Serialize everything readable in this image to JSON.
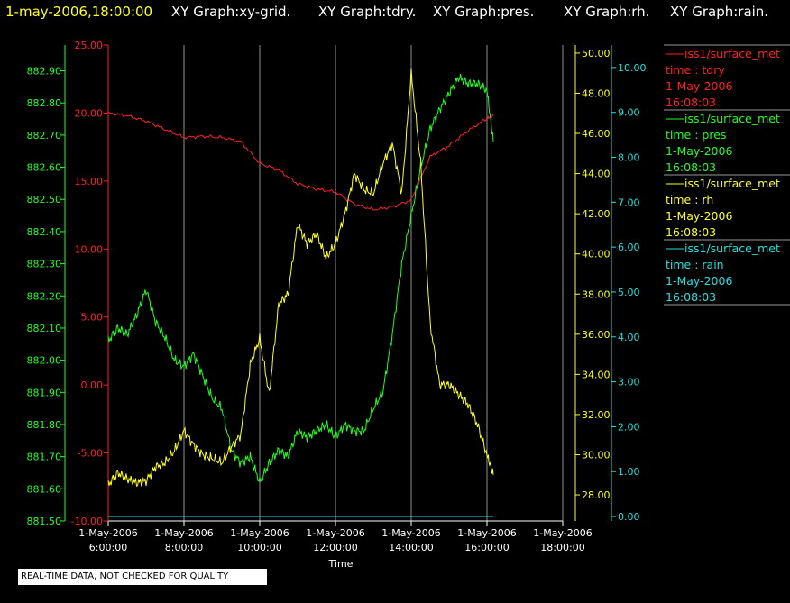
{
  "header": {
    "datetime": "1-may-2006,18:00:00",
    "graphs": [
      "XY Graph:xy-grid.",
      "XY Graph:tdry.",
      "XY Graph:pres.",
      "XY Graph:rh.",
      "XY Graph:rain."
    ]
  },
  "notice": "REAL-TIME DATA, NOT CHECKED FOR QUALITY",
  "colors": {
    "background": "#000000",
    "tdry": "#ff2020",
    "pres": "#20ff20",
    "rh": "#ffff20",
    "rain": "#20e0e0",
    "grid": "#ffffff"
  },
  "chart_data": {
    "type": "line",
    "xlabel": "Time",
    "x_ticks": [
      {
        "date": "1-May-2006",
        "time": "6:00:00"
      },
      {
        "date": "1-May-2006",
        "time": "8:00:00"
      },
      {
        "date": "1-May-2006",
        "time": "10:00:00"
      },
      {
        "date": "1-May-2006",
        "time": "12:00:00"
      },
      {
        "date": "1-May-2006",
        "time": "14:00:00"
      },
      {
        "date": "1-May-2006",
        "time": "16:00:00"
      },
      {
        "date": "1-May-2006",
        "time": "18:00:00"
      }
    ],
    "xlim": [
      "06:00",
      "18:00"
    ],
    "grid": "vertical",
    "axes": {
      "pres": {
        "ticks": [
          "881.50",
          "881.60",
          "881.70",
          "881.80",
          "881.90",
          "882.00",
          "882.10",
          "882.20",
          "882.30",
          "882.40",
          "882.50",
          "882.60",
          "882.70",
          "882.80",
          "882.90"
        ],
        "ylim": [
          881.5,
          882.98
        ]
      },
      "tdry": {
        "ticks": [
          "-10.00",
          "-5.00",
          "0.00",
          "5.00",
          "10.00",
          "15.00",
          "20.00",
          "25.00"
        ],
        "ylim": [
          -10,
          25
        ]
      },
      "rh": {
        "ticks": [
          "28.00",
          "30.00",
          "32.00",
          "34.00",
          "36.00",
          "38.00",
          "40.00",
          "42.00",
          "44.00",
          "46.00",
          "48.00",
          "50.00"
        ],
        "ylim": [
          26.7,
          50.4
        ]
      },
      "rain": {
        "ticks": [
          "0.00",
          "1.00",
          "2.00",
          "3.00",
          "4.00",
          "5.00",
          "6.00",
          "7.00",
          "8.00",
          "9.00",
          "10.00"
        ],
        "ylim": [
          -0.1,
          10.5
        ]
      }
    },
    "series": [
      {
        "name": "tdry",
        "axis": "tdry",
        "x": [
          "06:00",
          "06:30",
          "07:00",
          "07:30",
          "08:00",
          "08:30",
          "09:00",
          "09:30",
          "10:00",
          "10:30",
          "11:00",
          "11:30",
          "12:00",
          "12:30",
          "13:00",
          "13:30",
          "14:00",
          "14:30",
          "15:00",
          "15:30",
          "16:00",
          "16:10"
        ],
        "y": [
          20.0,
          19.8,
          19.4,
          18.8,
          18.2,
          18.3,
          18.2,
          17.9,
          16.3,
          15.8,
          14.8,
          14.4,
          14.2,
          13.3,
          12.9,
          13.1,
          13.6,
          16.8,
          17.6,
          18.7,
          19.6,
          19.8
        ]
      },
      {
        "name": "pres",
        "axis": "pres",
        "x": [
          "06:00",
          "06:15",
          "06:30",
          "06:45",
          "07:00",
          "07:15",
          "07:30",
          "07:45",
          "08:00",
          "08:15",
          "08:30",
          "08:45",
          "09:00",
          "09:15",
          "09:30",
          "09:45",
          "10:00",
          "10:15",
          "10:30",
          "10:45",
          "11:00",
          "11:15",
          "11:30",
          "11:45",
          "12:00",
          "12:15",
          "12:30",
          "12:45",
          "13:00",
          "13:15",
          "13:30",
          "13:45",
          "14:00",
          "14:15",
          "14:30",
          "14:45",
          "15:00",
          "15:15",
          "15:30",
          "15:45",
          "16:00",
          "16:10"
        ],
        "y": [
          882.06,
          882.1,
          882.08,
          882.14,
          882.22,
          882.12,
          882.07,
          882.0,
          881.98,
          882.02,
          881.95,
          881.88,
          881.85,
          881.72,
          881.68,
          881.7,
          881.62,
          881.68,
          881.72,
          881.7,
          881.78,
          881.76,
          881.78,
          881.8,
          881.76,
          881.8,
          881.78,
          881.78,
          881.85,
          881.9,
          882.08,
          882.3,
          882.45,
          882.6,
          882.72,
          882.78,
          882.83,
          882.88,
          882.86,
          882.86,
          882.84,
          882.68
        ]
      },
      {
        "name": "rh",
        "axis": "rh",
        "x": [
          "06:00",
          "06:15",
          "06:30",
          "06:45",
          "07:00",
          "07:15",
          "07:30",
          "07:45",
          "08:00",
          "08:15",
          "08:30",
          "08:45",
          "09:00",
          "09:15",
          "09:30",
          "09:45",
          "10:00",
          "10:15",
          "10:30",
          "10:45",
          "11:00",
          "11:15",
          "11:30",
          "11:45",
          "12:00",
          "12:15",
          "12:30",
          "12:45",
          "13:00",
          "13:15",
          "13:30",
          "13:45",
          "14:00",
          "14:15",
          "14:30",
          "14:45",
          "15:00",
          "15:15",
          "15:30",
          "15:45",
          "16:00",
          "16:10"
        ],
        "y": [
          28.5,
          29.1,
          28.8,
          28.6,
          28.7,
          29.4,
          29.6,
          30.2,
          31.2,
          30.5,
          30.0,
          29.8,
          29.6,
          30.4,
          31.0,
          34.5,
          35.8,
          33.0,
          37.5,
          38.0,
          41.5,
          40.5,
          41.0,
          39.8,
          40.5,
          42.0,
          44.0,
          43.2,
          43.0,
          44.5,
          45.5,
          43.0,
          49.0,
          44.5,
          36.5,
          33.5,
          33.5,
          33.0,
          32.5,
          31.5,
          30.0,
          29.0
        ]
      },
      {
        "name": "rain",
        "axis": "rain",
        "x": [
          "06:00",
          "16:10"
        ],
        "y": [
          0.0,
          0.0
        ]
      }
    ],
    "legend": {
      "placement": "right",
      "entries": [
        {
          "source": "iss1/surface_met",
          "label": "time : tdry",
          "date": "1-May-2006",
          "time": "16:08:03"
        },
        {
          "source": "iss1/surface_met",
          "label": "time : pres",
          "date": "1-May-2006",
          "time": "16:08:03"
        },
        {
          "source": "iss1/surface_met",
          "label": "time : rh",
          "date": "1-May-2006",
          "time": "16:08:03"
        },
        {
          "source": "iss1/surface_met",
          "label": "time : rain",
          "date": "1-May-2006",
          "time": "16:08:03"
        }
      ]
    }
  }
}
